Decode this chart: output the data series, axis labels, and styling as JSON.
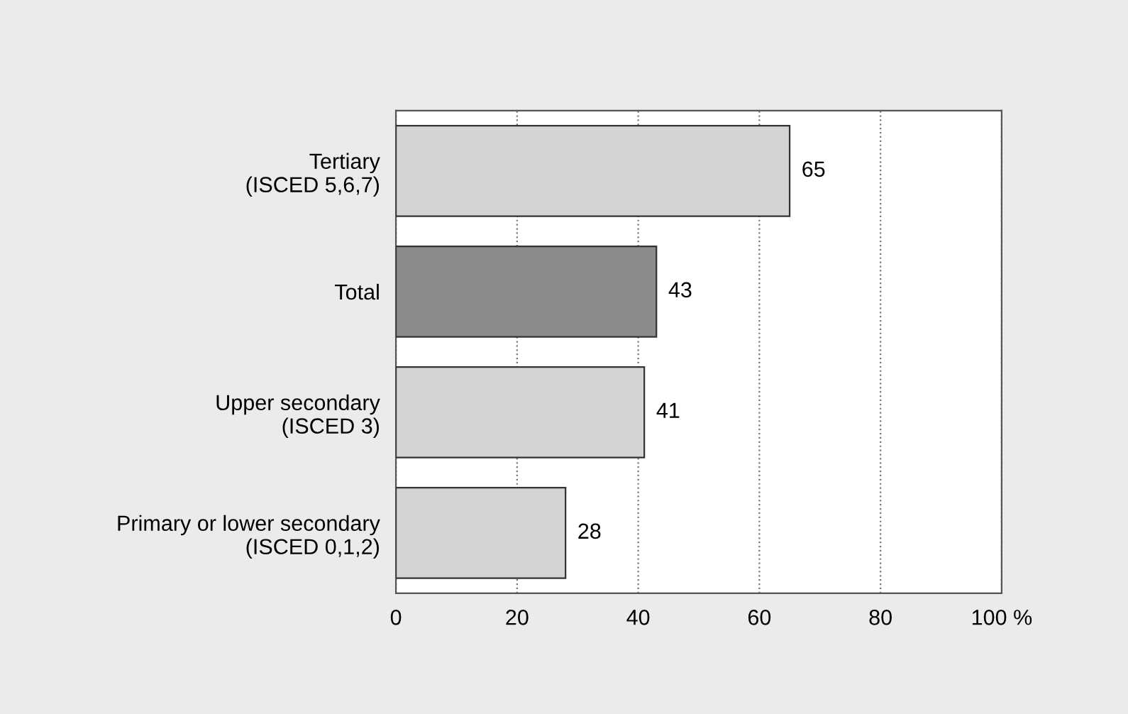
{
  "chart_data": {
    "type": "bar",
    "orientation": "horizontal",
    "categories": [
      "Tertiary\n(ISCED 5,6,7)",
      "Total",
      "Upper secondary\n(ISCED 3)",
      "Primary or lower secondary\n(ISCED 0,1,2)"
    ],
    "values": [
      65,
      43,
      41,
      28
    ],
    "colors": [
      "#d4d4d4",
      "#8c8c8c",
      "#d4d4d4",
      "#d4d4d4"
    ],
    "xlim": [
      0,
      100
    ],
    "xticks": [
      0,
      20,
      40,
      60,
      80,
      {
        "value": 100,
        "label": "100 %"
      }
    ],
    "grid": "x",
    "data_labels": true
  }
}
